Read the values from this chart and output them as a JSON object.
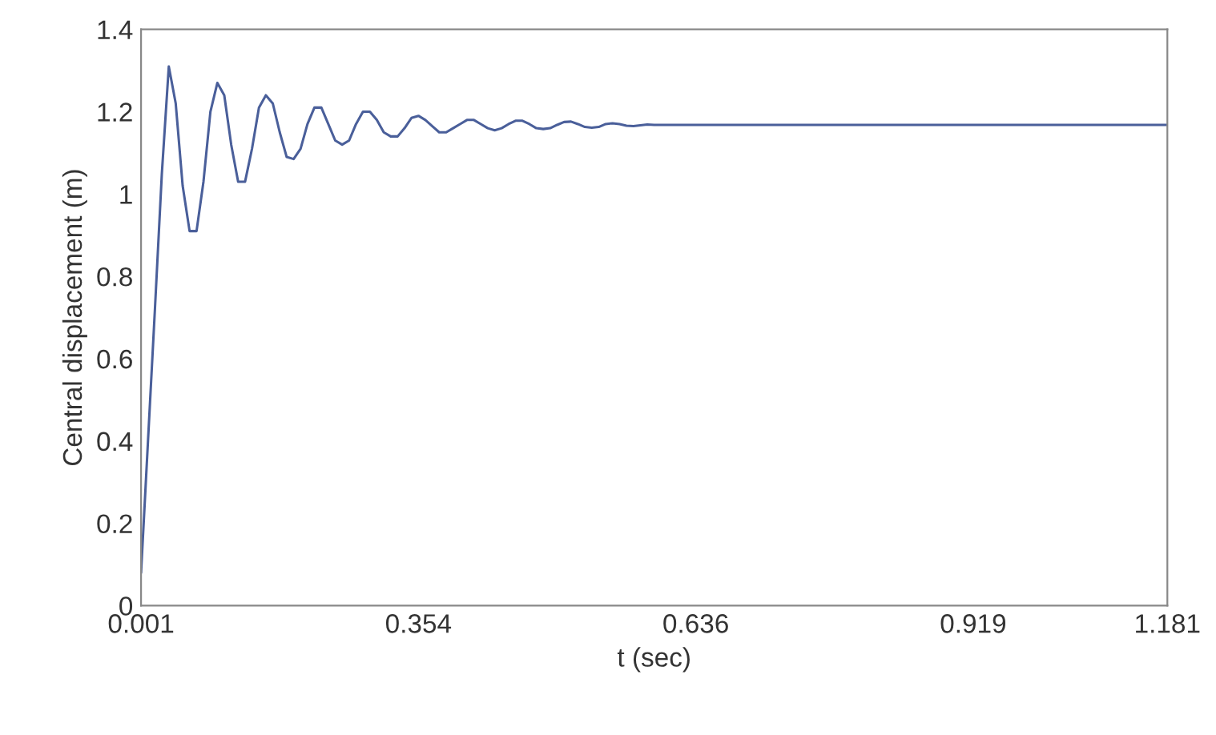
{
  "chart_data": {
    "type": "line",
    "xlabel": "t (sec)",
    "ylabel": "Central displacement (m)",
    "categories": [
      "0.001",
      null,
      null,
      null,
      null,
      null,
      null,
      null,
      null,
      null,
      null,
      null,
      null,
      null,
      null,
      null,
      null,
      null,
      null,
      null,
      null,
      null,
      null,
      null,
      null,
      null,
      null,
      null,
      null,
      null,
      null,
      null,
      null,
      null,
      null,
      null,
      null,
      null,
      null,
      null,
      "0.354",
      null,
      null,
      null,
      null,
      null,
      null,
      null,
      null,
      null,
      null,
      null,
      null,
      null,
      null,
      null,
      null,
      null,
      null,
      null,
      null,
      null,
      null,
      null,
      null,
      null,
      null,
      null,
      null,
      null,
      null,
      null,
      null,
      null,
      null,
      null,
      null,
      null,
      null,
      null,
      "0.636",
      null,
      null,
      null,
      null,
      null,
      null,
      null,
      null,
      null,
      null,
      null,
      null,
      null,
      null,
      null,
      null,
      null,
      null,
      null,
      null,
      null,
      null,
      null,
      null,
      null,
      null,
      null,
      null,
      null,
      null,
      null,
      null,
      null,
      null,
      null,
      null,
      null,
      null,
      null,
      "0.919",
      null,
      null,
      null,
      null,
      null,
      null,
      null,
      null,
      null,
      null,
      null,
      null,
      null,
      null,
      null,
      null,
      null,
      null,
      null,
      null,
      null,
      null,
      null,
      null,
      null,
      null,
      null,
      "1.181"
    ],
    "series": [
      {
        "color": "#4a5f9a",
        "values": [
          0.08,
          0.4,
          0.72,
          1.05,
          1.31,
          1.22,
          1.02,
          0.91,
          0.91,
          1.03,
          1.2,
          1.27,
          1.24,
          1.12,
          1.03,
          1.03,
          1.11,
          1.21,
          1.24,
          1.22,
          1.15,
          1.09,
          1.085,
          1.11,
          1.17,
          1.21,
          1.21,
          1.17,
          1.13,
          1.12,
          1.13,
          1.17,
          1.2,
          1.2,
          1.18,
          1.15,
          1.14,
          1.14,
          1.16,
          1.185,
          1.19,
          1.18,
          1.165,
          1.15,
          1.15,
          1.16,
          1.17,
          1.18,
          1.18,
          1.17,
          1.16,
          1.155,
          1.16,
          1.17,
          1.178,
          1.178,
          1.17,
          1.16,
          1.158,
          1.16,
          1.168,
          1.175,
          1.176,
          1.17,
          1.163,
          1.161,
          1.163,
          1.17,
          1.172,
          1.17,
          1.166,
          1.165,
          1.167,
          1.169,
          1.168,
          1.168,
          1.168,
          1.168,
          1.168,
          1.168,
          1.168,
          1.168,
          1.168,
          1.168,
          1.168,
          1.168,
          1.168,
          1.168,
          1.168,
          1.168,
          1.168,
          1.168,
          1.168,
          1.168,
          1.168,
          1.168,
          1.168,
          1.168,
          1.168,
          1.168,
          1.168,
          1.168,
          1.168,
          1.168,
          1.168,
          1.168,
          1.168,
          1.168,
          1.168,
          1.168,
          1.168,
          1.168,
          1.168,
          1.168,
          1.168,
          1.168,
          1.168,
          1.168,
          1.168,
          1.168,
          1.168,
          1.168,
          1.168,
          1.168,
          1.168,
          1.168,
          1.168,
          1.168,
          1.168,
          1.168,
          1.168,
          1.168,
          1.168,
          1.168,
          1.168,
          1.168,
          1.168,
          1.168,
          1.168,
          1.168,
          1.168,
          1.168,
          1.168,
          1.168,
          1.168,
          1.168,
          1.168,
          1.168,
          1.168
        ]
      }
    ],
    "ylim": [
      0,
      1.4
    ],
    "yticks": [
      0,
      0.2,
      0.4,
      0.6,
      0.8,
      1,
      1.2,
      1.4
    ],
    "grid": false,
    "marker": "none",
    "line_style": "solid"
  }
}
